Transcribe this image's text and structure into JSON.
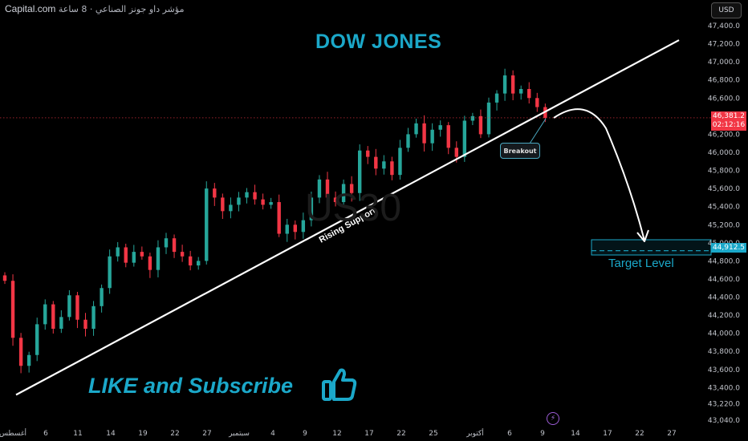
{
  "header": {
    "brand": "Capital.com",
    "subtitle": "مؤشر داو جونز الصناعي · 8 ساعة",
    "currency": "USD"
  },
  "overlay": {
    "title": "DOW JONES",
    "watermark": "US30",
    "support_label": "Rising Support",
    "breakout_label": "Breakout",
    "target_label": "Target Level",
    "cta": "LIKE and Subscribe",
    "thumb_icon": "thumbs-up-icon",
    "flash_icon": "lightning-icon"
  },
  "price_tags": {
    "current_price": "46,381.2",
    "countdown": "02:12:16",
    "target_price": "44,912.5"
  },
  "colors": {
    "up": "#26a69a",
    "down": "#f23645",
    "accent": "#1ba8c9",
    "background": "#000000"
  },
  "chart_data": {
    "type": "candlestick",
    "title": "DOW JONES",
    "y_axis": {
      "ticks": [
        47400,
        47200,
        47000,
        46800,
        46600,
        46200,
        46000,
        45800,
        45600,
        45400,
        45200,
        45000,
        44800,
        44600,
        44400,
        44200,
        44000,
        43800,
        43600,
        43400,
        43220,
        43040
      ],
      "range": [
        43040,
        47450
      ]
    },
    "x_axis": {
      "labels": [
        "أغسطس",
        "6",
        "11",
        "14",
        "19",
        "22",
        "27",
        "سبتمبر",
        "4",
        "9",
        "12",
        "17",
        "22",
        "25",
        "أكتوبر",
        "6",
        "9",
        "14",
        "17",
        "22",
        "27"
      ]
    },
    "current_price": 46381.2,
    "target_level": 44912.5,
    "support_line": {
      "start": 43320,
      "end": 47240
    },
    "closes": [
      44580,
      43950,
      43640,
      43760,
      44100,
      44320,
      44050,
      44180,
      44420,
      44150,
      44050,
      44300,
      44500,
      44850,
      44950,
      44780,
      44900,
      44850,
      44700,
      44950,
      45050,
      44900,
      44850,
      44750,
      44800,
      45600,
      45500,
      45350,
      45420,
      45500,
      45560,
      45480,
      45420,
      45450,
      45100,
      45200,
      45120,
      45250,
      45500,
      45700,
      45500,
      45450,
      45650,
      45550,
      46020,
      45950,
      45820,
      45900,
      45750,
      46050,
      46200,
      46320,
      46100,
      46250,
      46300,
      46050,
      45950,
      46350,
      46400,
      46200,
      46550,
      46650,
      46850,
      46650,
      46700,
      46600,
      46500,
      46381
    ]
  }
}
